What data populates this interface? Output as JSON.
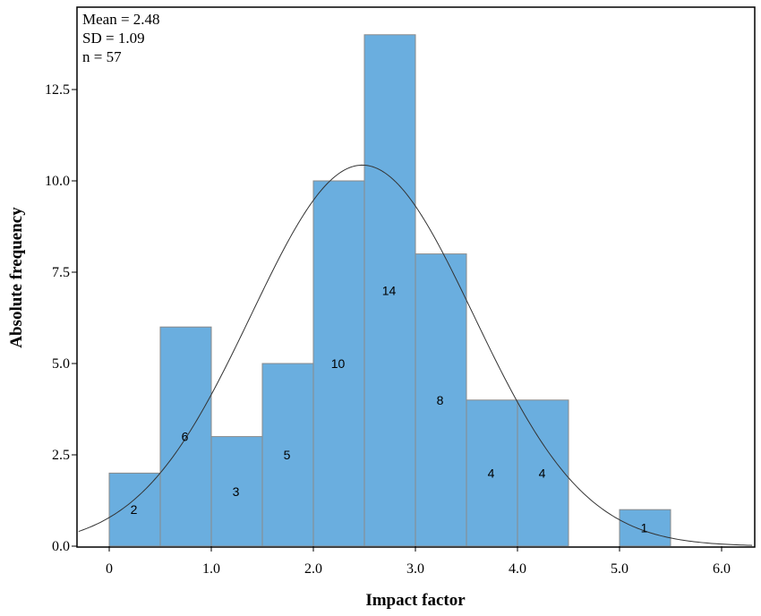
{
  "chart_data": {
    "type": "bar",
    "subtype": "histogram",
    "stats": [
      "Mean = 2.48",
      "SD = 1.09",
      "n = 57"
    ],
    "mean": 2.48,
    "sd": 1.09,
    "n": 57,
    "bin_width": 0.5,
    "bins": [
      {
        "start": 0.0,
        "end": 0.5,
        "count": 2,
        "label": "2"
      },
      {
        "start": 0.5,
        "end": 1.0,
        "count": 6,
        "label": "6"
      },
      {
        "start": 1.0,
        "end": 1.5,
        "count": 3,
        "label": "3"
      },
      {
        "start": 1.5,
        "end": 2.0,
        "count": 5,
        "label": "5"
      },
      {
        "start": 2.0,
        "end": 2.5,
        "count": 10,
        "label": "10"
      },
      {
        "start": 2.5,
        "end": 3.0,
        "count": 14,
        "label": "14"
      },
      {
        "start": 3.0,
        "end": 3.5,
        "count": 8,
        "label": "8"
      },
      {
        "start": 3.5,
        "end": 4.0,
        "count": 4,
        "label": "4"
      },
      {
        "start": 4.0,
        "end": 4.5,
        "count": 4,
        "label": "4"
      },
      {
        "start": 5.0,
        "end": 5.5,
        "count": 1,
        "label": "1"
      }
    ],
    "xlabel": "Impact factor",
    "ylabel": "Absolute frequency",
    "xlim": [
      -0.3,
      6.3
    ],
    "ylim": [
      0,
      15
    ],
    "xticks": [
      "0",
      "1.0",
      "2.0",
      "3.0",
      "4.0",
      "5.0",
      "6.0"
    ],
    "xtick_values": [
      0,
      1,
      2,
      3,
      4,
      5,
      6
    ],
    "yticks": [
      "0.0",
      "2.5",
      "5.0",
      "7.5",
      "10.0",
      "12.5"
    ],
    "ytick_values": [
      0,
      2.5,
      5,
      7.5,
      10,
      12.5
    ],
    "normal_curve": true,
    "grid": false,
    "colors": {
      "bar": "#6aaedf",
      "bar_edge": "#8a8a8a",
      "curve": "#333333"
    }
  }
}
